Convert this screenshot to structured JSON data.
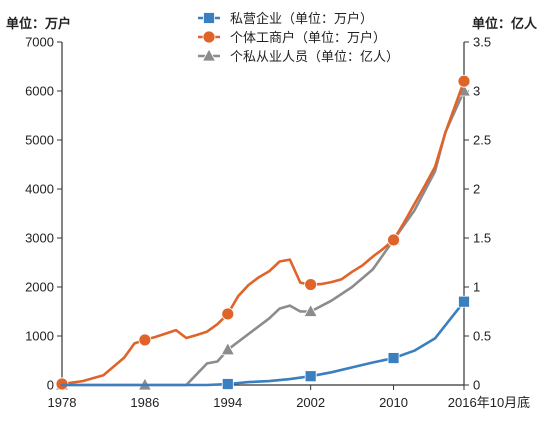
{
  "chart_data": {
    "type": "line",
    "left_axis_unit": "单位：万户",
    "right_axis_unit": "单位：亿人",
    "x_ticks": [
      "1978",
      "1986",
      "1994",
      "2002",
      "2010",
      "2016年10月底"
    ],
    "left_ylim": [
      0,
      7000
    ],
    "left_yticks": [
      "0",
      "1000",
      "2000",
      "3000",
      "4000",
      "5000",
      "6000",
      "7000"
    ],
    "right_ylim": [
      0,
      3.5
    ],
    "right_yticks": [
      "0",
      "0.5",
      "1",
      "1.5",
      "2",
      "2.5",
      "3",
      "3.5"
    ],
    "grid": false,
    "legend_position": "top-center",
    "series": [
      {
        "name": "私营企业（单位：万户）",
        "axis": "left",
        "color": "#3a7fbf",
        "marker": "square",
        "x": [
          1978,
          1986,
          1992,
          1994,
          1996,
          1998,
          2000,
          2002,
          2004,
          2006,
          2008,
          2010,
          2012,
          2014,
          2016.8
        ],
        "values": [
          0,
          0,
          0,
          20,
          60,
          80,
          120,
          180,
          260,
          360,
          460,
          550,
          700,
          950,
          1700
        ],
        "markers_at": [
          1994,
          2002,
          2010,
          2016.8
        ]
      },
      {
        "name": "个体工商户（单位：万户）",
        "axis": "left",
        "color": "#e0642a",
        "marker": "circle",
        "x": [
          1978,
          1980,
          1982,
          1984,
          1985,
          1986,
          1987,
          1988,
          1989,
          1990,
          1991,
          1992,
          1993,
          1994,
          1995,
          1996,
          1997,
          1998,
          1999,
          2000,
          2001,
          2002,
          2003,
          2004,
          2005,
          2006,
          2007,
          2008,
          2009,
          2010,
          2011,
          2012,
          2013,
          2014,
          2015,
          2016.8
        ],
        "values": [
          20,
          80,
          200,
          560,
          850,
          920,
          980,
          1050,
          1120,
          960,
          1020,
          1090,
          1240,
          1450,
          1810,
          2040,
          2200,
          2320,
          2520,
          2560,
          2090,
          2050,
          2060,
          2100,
          2160,
          2310,
          2440,
          2620,
          2780,
          2960,
          3310,
          3690,
          4060,
          4450,
          5150,
          6200
        ],
        "markers_at": [
          1978,
          1986,
          1994,
          2002,
          2010,
          2016.8
        ]
      },
      {
        "name": "个私从业人员（单位：亿人）",
        "axis": "right",
        "color": "#8c8c8c",
        "marker": "triangle",
        "x": [
          1978,
          1986,
          1990,
          1992,
          1993,
          1994,
          1996,
          1998,
          1999,
          2000,
          2001,
          2002,
          2004,
          2006,
          2008,
          2010,
          2012,
          2014,
          2015,
          2016.8
        ],
        "values": [
          0,
          0,
          0,
          0.22,
          0.24,
          0.36,
          0.52,
          0.68,
          0.78,
          0.81,
          0.75,
          0.75,
          0.86,
          1.0,
          1.18,
          1.48,
          1.78,
          2.18,
          2.58,
          3.0
        ],
        "markers_at": [
          1978,
          1986,
          1994,
          2002,
          2010,
          2016.8
        ]
      }
    ]
  }
}
